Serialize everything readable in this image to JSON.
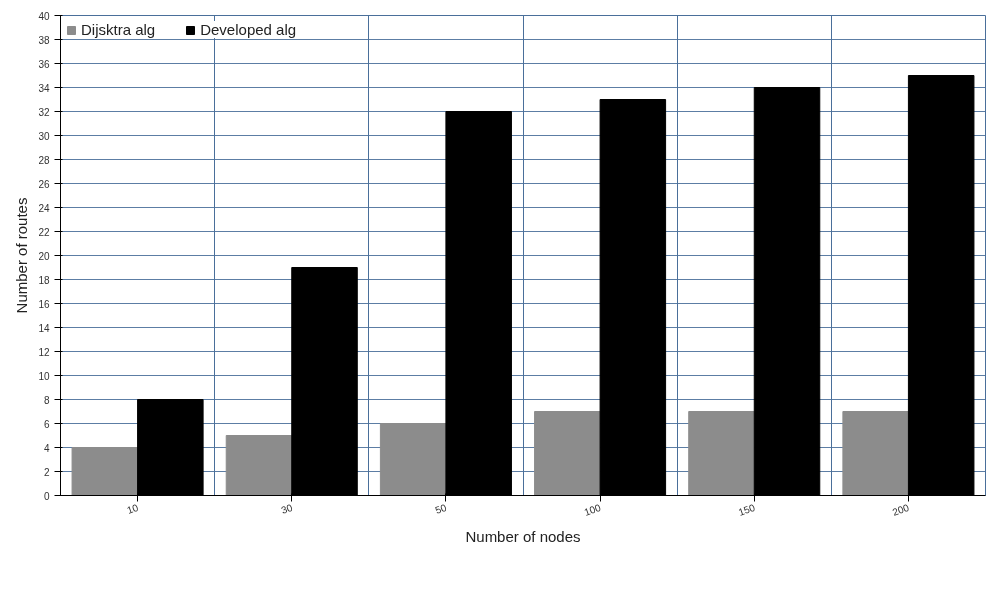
{
  "chart_data": {
    "type": "bar",
    "xlabel": "Number of nodes",
    "ylabel": "Number of routes",
    "categories": [
      "10",
      "30",
      "50",
      "100",
      "150",
      "200"
    ],
    "series": [
      {
        "name": "Dijsktra alg",
        "color": "#8c8c8c",
        "values": [
          4,
          5,
          6,
          7,
          7,
          7
        ]
      },
      {
        "name": "Developed alg",
        "color": "#000000",
        "values": [
          8,
          19,
          32,
          33,
          34,
          35
        ]
      }
    ],
    "ylim": [
      0,
      40
    ],
    "yticks": [
      0,
      2,
      4,
      6,
      8,
      10,
      12,
      14,
      16,
      18,
      20,
      22,
      24,
      26,
      28,
      30,
      32,
      34,
      36,
      38,
      40
    ],
    "grid": true,
    "legend": "top left"
  }
}
